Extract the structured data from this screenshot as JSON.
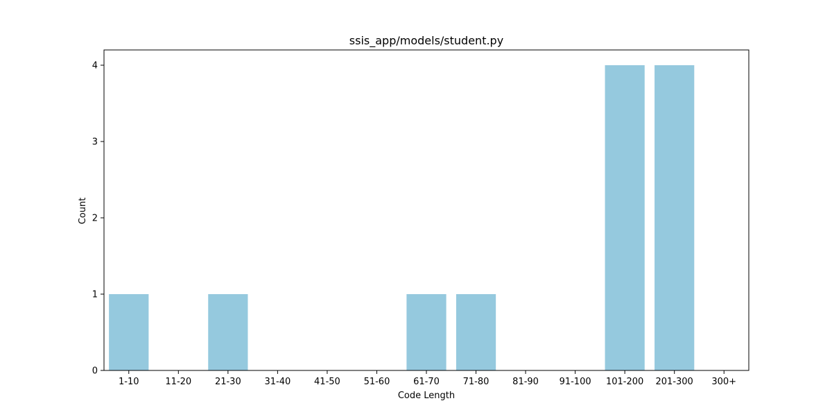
{
  "chart_data": {
    "type": "bar",
    "title": "ssis_app/models/student.py",
    "xlabel": "Code Length",
    "ylabel": "Count",
    "categories": [
      "1-10",
      "11-20",
      "21-30",
      "31-40",
      "41-50",
      "51-60",
      "61-70",
      "71-80",
      "81-90",
      "91-100",
      "101-200",
      "201-300",
      "300+"
    ],
    "values": [
      1,
      0,
      1,
      0,
      0,
      0,
      1,
      1,
      0,
      0,
      4,
      4,
      0
    ],
    "yticks": [
      "0",
      "1",
      "2",
      "3",
      "4"
    ],
    "ylim": [
      0,
      4.2
    ],
    "grid": false,
    "bar_color": "#95c9de"
  }
}
